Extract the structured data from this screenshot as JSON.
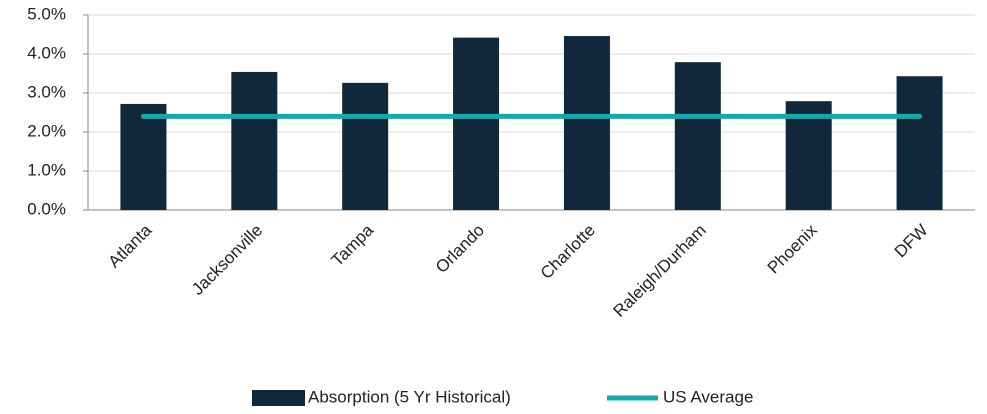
{
  "chart_data": {
    "type": "bar",
    "categories": [
      "Atlanta",
      "Jacksonville",
      "Tampa",
      "Orlando",
      "Charlotte",
      "Raleigh/Durham",
      "Phoenix",
      "DFW"
    ],
    "series": [
      {
        "name": "Absorption (5 Yr Historical)",
        "type": "bar",
        "color": "#10283a",
        "values": [
          2.72,
          3.54,
          3.26,
          4.42,
          4.46,
          3.79,
          2.79,
          3.43
        ]
      },
      {
        "name": "US Average",
        "type": "line",
        "color": "#17a9a9",
        "values": [
          2.4,
          2.4,
          2.4,
          2.4,
          2.4,
          2.4,
          2.4,
          2.4
        ]
      }
    ],
    "ylim": [
      0,
      5
    ],
    "yticks": [
      {
        "value": 0,
        "label": "0.0%"
      },
      {
        "value": 1,
        "label": "1.0%"
      },
      {
        "value": 2,
        "label": "2.0%"
      },
      {
        "value": 3,
        "label": "3.0%"
      },
      {
        "value": 4,
        "label": "4.0%"
      },
      {
        "value": 5,
        "label": "5.0%"
      }
    ],
    "grid": true,
    "legend": "bottom"
  }
}
